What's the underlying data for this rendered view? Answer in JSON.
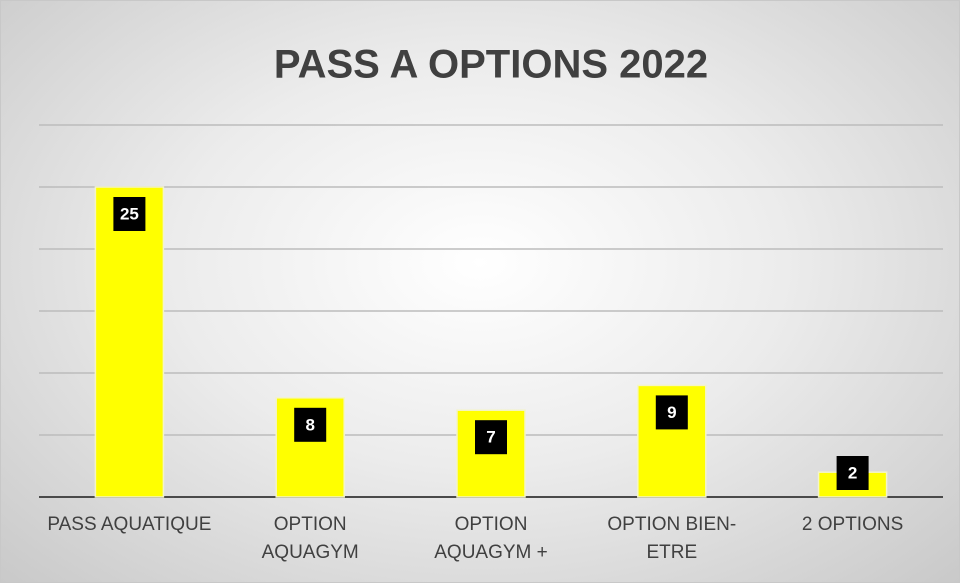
{
  "chart_data": {
    "type": "bar",
    "title": "PASS A OPTIONS 2022",
    "categories": [
      "PASS AQUATIQUE",
      "OPTION AQUAGYM",
      "OPTION AQUAGYM +",
      "OPTION BIEN-ETRE",
      "2 OPTIONS"
    ],
    "values": [
      25,
      8,
      7,
      9,
      2
    ],
    "color": "#ffff00",
    "ylim": [
      0,
      30
    ],
    "yticks": [
      0,
      5,
      10,
      15,
      20,
      25,
      30
    ],
    "grid": true
  }
}
